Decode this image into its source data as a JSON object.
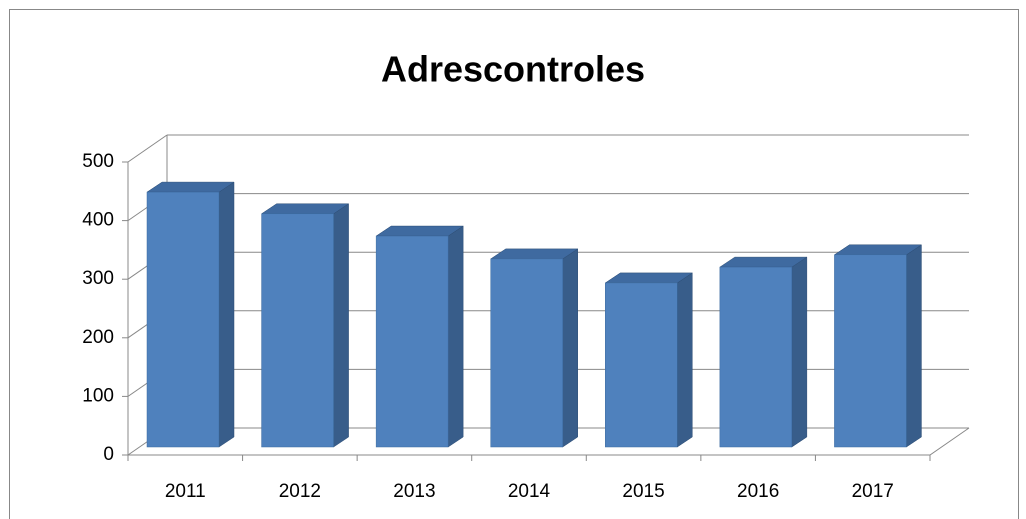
{
  "chart_data": {
    "type": "bar",
    "title": "Adrescontroles",
    "categories": [
      "2011",
      "2012",
      "2013",
      "2014",
      "2015",
      "2016",
      "2017"
    ],
    "values": [
      435,
      398,
      360,
      321,
      280,
      307,
      328
    ],
    "color": "#4f81bd",
    "ylim": [
      0,
      500
    ],
    "yticks": [
      0,
      100,
      200,
      300,
      400,
      500
    ],
    "grid": true
  }
}
